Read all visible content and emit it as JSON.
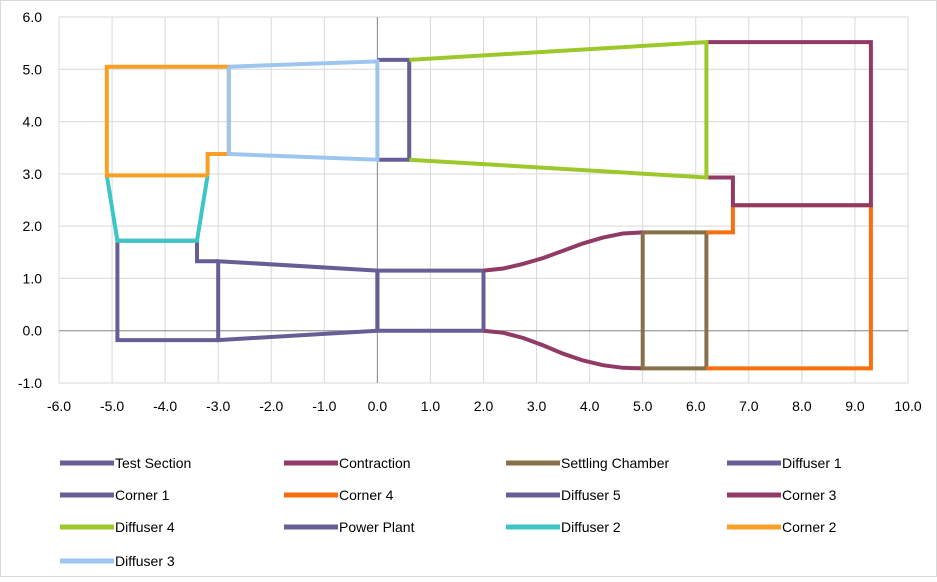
{
  "chart_data": {
    "type": "scatter",
    "title": "",
    "xlabel": "",
    "ylabel": "",
    "xlim": [
      -6,
      10
    ],
    "ylim": [
      -1,
      6
    ],
    "x_ticks": [
      "-6.0",
      "-5.0",
      "-4.0",
      "-3.0",
      "-2.0",
      "-1.0",
      "0.0",
      "1.0",
      "2.0",
      "3.0",
      "4.0",
      "5.0",
      "6.0",
      "7.0",
      "8.0",
      "9.0",
      "10.0"
    ],
    "y_ticks": [
      "6.0",
      "5.0",
      "4.0",
      "3.0",
      "2.0",
      "1.0",
      "0.0",
      "-1.0"
    ],
    "grid": true,
    "legend_position": "bottom",
    "series": [
      {
        "name": "Test Section",
        "color": "#675E96",
        "points": [
          [
            0,
            1.15
          ],
          [
            2,
            1.15
          ],
          [
            2,
            0
          ],
          [
            0,
            0
          ],
          [
            0,
            1.15
          ]
        ]
      },
      {
        "name": "Contraction",
        "color": "#913A66",
        "points_upper": [
          [
            2,
            1.15
          ],
          [
            2.375,
            1.19
          ],
          [
            2.75,
            1.28
          ],
          [
            3.125,
            1.39
          ],
          [
            3.5,
            1.53
          ],
          [
            3.875,
            1.67
          ],
          [
            4.25,
            1.78
          ],
          [
            4.625,
            1.86
          ],
          [
            5,
            1.88
          ]
        ],
        "points_lower": [
          [
            2,
            0
          ],
          [
            2.375,
            -0.04
          ],
          [
            2.75,
            -0.14
          ],
          [
            3.125,
            -0.28
          ],
          [
            3.5,
            -0.44
          ],
          [
            3.875,
            -0.57
          ],
          [
            4.25,
            -0.66
          ],
          [
            4.625,
            -0.71
          ],
          [
            5,
            -0.72
          ]
        ]
      },
      {
        "name": "Settling Chamber",
        "color": "#88704A",
        "points": [
          [
            5,
            1.88
          ],
          [
            6.2,
            1.88
          ],
          [
            6.2,
            -0.72
          ],
          [
            5,
            -0.72
          ],
          [
            5,
            1.88
          ]
        ]
      },
      {
        "name": "Diffuser 1",
        "color": "#675E96",
        "points": [
          [
            0,
            1.15
          ],
          [
            -3,
            1.33
          ],
          [
            -3,
            -0.18
          ],
          [
            0,
            0
          ],
          [
            0,
            1.15
          ]
        ]
      },
      {
        "name": "Corner 1",
        "color": "#675E96",
        "points": [
          [
            -3,
            1.33
          ],
          [
            -3.4,
            1.33
          ],
          [
            -3.4,
            1.72
          ],
          [
            -4.9,
            1.72
          ],
          [
            -4.9,
            -0.18
          ],
          [
            -3,
            -0.18
          ]
        ]
      },
      {
        "name": "Corner 4",
        "color": "#F96E0E",
        "points": [
          [
            6.2,
            1.88
          ],
          [
            6.7,
            1.88
          ],
          [
            6.7,
            2.4
          ],
          [
            9.3,
            2.4
          ],
          [
            9.3,
            -0.72
          ],
          [
            6.2,
            -0.72
          ]
        ]
      },
      {
        "name": "Diffuser 5",
        "color": "#675E96",
        "points": [
          [
            0,
            3.27
          ],
          [
            0.6,
            3.27
          ],
          [
            0.6,
            5.18
          ],
          [
            0,
            5.18
          ]
        ]
      },
      {
        "name": "Corner 3",
        "color": "#913A66",
        "points": [
          [
            6.2,
            2.93
          ],
          [
            6.7,
            2.93
          ],
          [
            6.7,
            2.4
          ],
          [
            9.3,
            2.4
          ],
          [
            9.3,
            5.52
          ],
          [
            6.2,
            5.52
          ]
        ]
      },
      {
        "name": "Diffuser 4",
        "color": "#9DC82B",
        "points": [
          [
            0.6,
            5.18
          ],
          [
            6.2,
            5.52
          ],
          [
            6.2,
            2.93
          ],
          [
            0.6,
            3.27
          ]
        ]
      },
      {
        "name": "Power Plant",
        "color": "#675E96",
        "points": []
      },
      {
        "name": "Diffuser 2",
        "color": "#3DC6C5",
        "points": [
          [
            -5.1,
            2.97
          ],
          [
            -4.9,
            1.72
          ],
          [
            -3.4,
            1.72
          ],
          [
            -3.2,
            2.97
          ]
        ]
      },
      {
        "name": "Corner 2",
        "color": "#F8A026",
        "points": [
          [
            -3.2,
            2.97
          ],
          [
            -5.1,
            2.97
          ],
          [
            -5.1,
            5.05
          ],
          [
            -2.8,
            5.05
          ],
          [
            -2.8,
            3.38
          ],
          [
            -3.2,
            3.38
          ],
          [
            -3.2,
            2.97
          ]
        ]
      },
      {
        "name": "Diffuser 3",
        "color": "#9CC6F0",
        "points": [
          [
            -2.8,
            5.05
          ],
          [
            0,
            5.15
          ],
          [
            0,
            3.27
          ],
          [
            -2.8,
            3.38
          ],
          [
            -2.8,
            5.05
          ]
        ]
      }
    ]
  }
}
